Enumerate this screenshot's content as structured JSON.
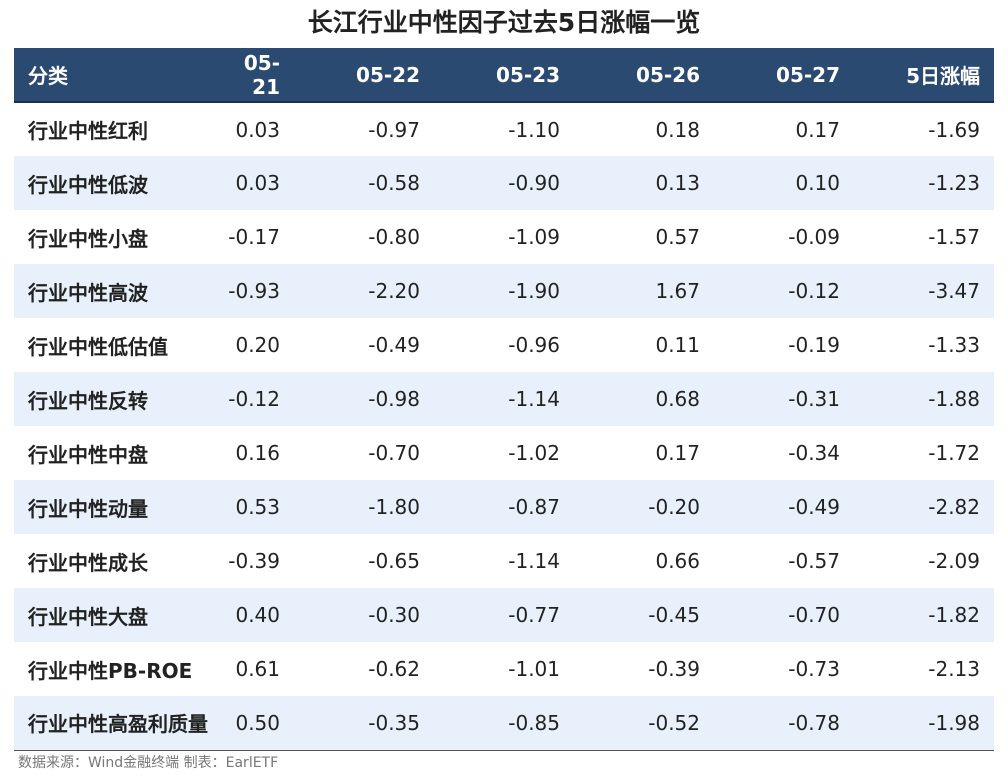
{
  "title": "长江行业中性因子过去5日涨幅一览",
  "table": {
    "headers": [
      "分类",
      "05-21",
      "05-22",
      "05-23",
      "05-26",
      "05-27",
      "5日涨幅"
    ],
    "rows": [
      [
        "行业中性红利",
        "0.03",
        "-0.97",
        "-1.10",
        "0.18",
        "0.17",
        "-1.69"
      ],
      [
        "行业中性低波",
        "0.03",
        "-0.58",
        "-0.90",
        "0.13",
        "0.10",
        "-1.23"
      ],
      [
        "行业中性小盘",
        "-0.17",
        "-0.80",
        "-1.09",
        "0.57",
        "-0.09",
        "-1.57"
      ],
      [
        "行业中性高波",
        "-0.93",
        "-2.20",
        "-1.90",
        "1.67",
        "-0.12",
        "-3.47"
      ],
      [
        "行业中性低估值",
        "0.20",
        "-0.49",
        "-0.96",
        "0.11",
        "-0.19",
        "-1.33"
      ],
      [
        "行业中性反转",
        "-0.12",
        "-0.98",
        "-1.14",
        "0.68",
        "-0.31",
        "-1.88"
      ],
      [
        "行业中性中盘",
        "0.16",
        "-0.70",
        "-1.02",
        "0.17",
        "-0.34",
        "-1.72"
      ],
      [
        "行业中性动量",
        "0.53",
        "-1.80",
        "-0.87",
        "-0.20",
        "-0.49",
        "-2.82"
      ],
      [
        "行业中性成长",
        "-0.39",
        "-0.65",
        "-1.14",
        "0.66",
        "-0.57",
        "-2.09"
      ],
      [
        "行业中性大盘",
        "0.40",
        "-0.30",
        "-0.77",
        "-0.45",
        "-0.70",
        "-1.82"
      ],
      [
        "行业中性PB-ROE",
        "0.61",
        "-0.62",
        "-1.01",
        "-0.39",
        "-0.73",
        "-2.13"
      ],
      [
        "行业中性高盈利质量",
        "0.50",
        "-0.35",
        "-0.85",
        "-0.52",
        "-0.78",
        "-1.98"
      ]
    ]
  },
  "source": "数据来源：Wind金融终端 制表：EarlETF",
  "colors": {
    "header_bg": "#2b4a72",
    "stripe_bg": "#e8f1fb"
  }
}
